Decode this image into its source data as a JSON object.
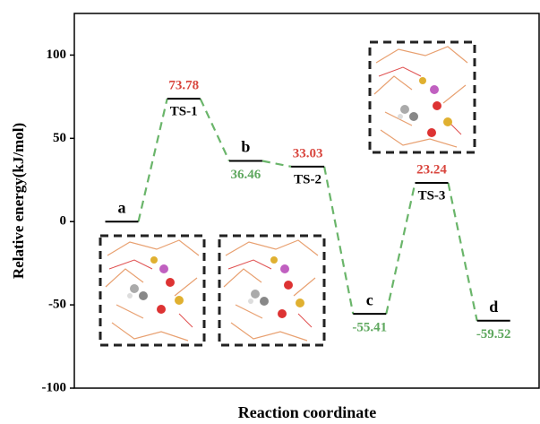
{
  "chart_data": {
    "type": "energy-diagram",
    "y_label": "Relative energy(kJ/mol)",
    "x_label": "Reaction coordinate",
    "categories": [
      "a",
      "TS-1",
      "b",
      "TS-2",
      "c",
      "TS-3",
      "d"
    ],
    "values": [
      0,
      73.78,
      36.46,
      33.03,
      -55.41,
      23.24,
      -59.52
    ],
    "value_labels": [
      null,
      "73.78",
      "36.46",
      "33.03",
      "-55.41",
      "23.24",
      "-59.52"
    ],
    "value_label_colors": [
      null,
      "#d9463e",
      "#5fa85f",
      "#d9463e",
      "#5fa85f",
      "#d9463e",
      "#5fa85f"
    ],
    "level_color": "#000000",
    "connector_color": "#6ab56a",
    "ylim": [
      -100,
      125
    ],
    "yticks": [
      -100,
      -50,
      0,
      50,
      100
    ]
  }
}
